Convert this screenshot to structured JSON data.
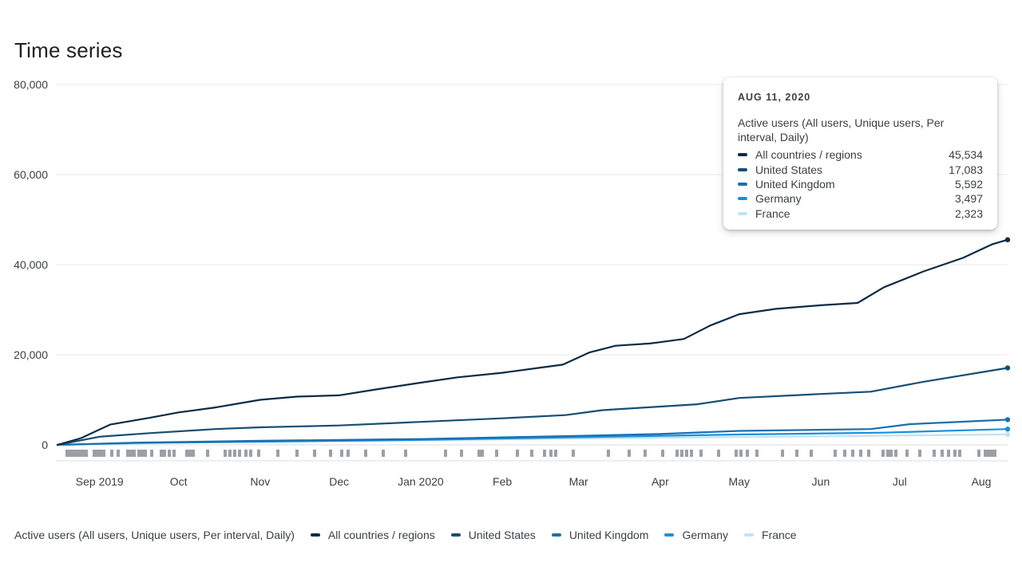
{
  "page": {
    "title": "Time series"
  },
  "chart_data": {
    "type": "line",
    "title": "Time series",
    "metric": "Active users (All users, Unique users, Per interval, Daily)",
    "x_range": [
      "2019-08-16",
      "2020-08-11"
    ],
    "ylim": [
      0,
      80000
    ],
    "y_ticks": [
      "0",
      "20,000",
      "40,000",
      "60,000",
      "80,000"
    ],
    "y_tick_values": [
      0,
      20000,
      40000,
      60000,
      80000
    ],
    "x_ticks": [
      {
        "label": "Sep 2019",
        "date": "2019-09-01"
      },
      {
        "label": "Oct",
        "date": "2019-10-01"
      },
      {
        "label": "Nov",
        "date": "2019-11-01"
      },
      {
        "label": "Dec",
        "date": "2019-12-01"
      },
      {
        "label": "Jan 2020",
        "date": "2020-01-01"
      },
      {
        "label": "Feb",
        "date": "2020-02-01"
      },
      {
        "label": "Mar",
        "date": "2020-03-01"
      },
      {
        "label": "Apr",
        "date": "2020-04-01"
      },
      {
        "label": "May",
        "date": "2020-05-01"
      },
      {
        "label": "Jun",
        "date": "2020-06-01"
      },
      {
        "label": "Jul",
        "date": "2020-07-01"
      },
      {
        "label": "Aug",
        "date": "2020-08-01"
      }
    ],
    "grid": true,
    "legend_position": "bottom",
    "series": [
      {
        "name": "All countries / regions",
        "color": "#0b2b45",
        "points": [
          [
            "2019-08-16",
            0
          ],
          [
            "2019-08-25",
            1500
          ],
          [
            "2019-09-05",
            4500
          ],
          [
            "2019-09-20",
            6000
          ],
          [
            "2019-10-01",
            7200
          ],
          [
            "2019-10-15",
            8300
          ],
          [
            "2019-11-01",
            10000
          ],
          [
            "2019-11-15",
            10700
          ],
          [
            "2019-12-01",
            11000
          ],
          [
            "2019-12-15",
            12300
          ],
          [
            "2020-01-01",
            13800
          ],
          [
            "2020-01-15",
            15000
          ],
          [
            "2020-02-01",
            16000
          ],
          [
            "2020-02-15",
            17100
          ],
          [
            "2020-02-24",
            17800
          ],
          [
            "2020-03-05",
            20500
          ],
          [
            "2020-03-15",
            22000
          ],
          [
            "2020-03-28",
            22500
          ],
          [
            "2020-04-01",
            22800
          ],
          [
            "2020-04-10",
            23500
          ],
          [
            "2020-04-20",
            26500
          ],
          [
            "2020-05-01",
            29000
          ],
          [
            "2020-05-15",
            30200
          ],
          [
            "2020-06-01",
            31000
          ],
          [
            "2020-06-15",
            31500
          ],
          [
            "2020-06-25",
            35000
          ],
          [
            "2020-07-10",
            38500
          ],
          [
            "2020-07-25",
            41500
          ],
          [
            "2020-08-05",
            44500
          ],
          [
            "2020-08-11",
            45534
          ]
        ]
      },
      {
        "name": "United States",
        "color": "#154e73",
        "points": [
          [
            "2019-08-16",
            0
          ],
          [
            "2019-09-01",
            1800
          ],
          [
            "2019-09-20",
            2600
          ],
          [
            "2019-10-15",
            3500
          ],
          [
            "2019-11-01",
            3900
          ],
          [
            "2019-12-01",
            4300
          ],
          [
            "2020-01-01",
            5100
          ],
          [
            "2020-02-01",
            5900
          ],
          [
            "2020-02-25",
            6600
          ],
          [
            "2020-03-10",
            7700
          ],
          [
            "2020-04-01",
            8500
          ],
          [
            "2020-04-15",
            9000
          ],
          [
            "2020-05-01",
            10400
          ],
          [
            "2020-06-01",
            11300
          ],
          [
            "2020-06-20",
            11800
          ],
          [
            "2020-07-10",
            14000
          ],
          [
            "2020-08-11",
            17083
          ]
        ]
      },
      {
        "name": "United Kingdom",
        "color": "#1a6fb0",
        "points": [
          [
            "2019-08-16",
            0
          ],
          [
            "2019-09-15",
            500
          ],
          [
            "2019-11-01",
            900
          ],
          [
            "2020-01-01",
            1300
          ],
          [
            "2020-03-01",
            2000
          ],
          [
            "2020-04-01",
            2400
          ],
          [
            "2020-05-01",
            3100
          ],
          [
            "2020-06-20",
            3500
          ],
          [
            "2020-07-05",
            4600
          ],
          [
            "2020-08-11",
            5592
          ]
        ]
      },
      {
        "name": "Germany",
        "color": "#1b8fdb",
        "points": [
          [
            "2019-08-16",
            0
          ],
          [
            "2019-09-15",
            400
          ],
          [
            "2019-11-01",
            700
          ],
          [
            "2020-01-01",
            1100
          ],
          [
            "2020-03-01",
            1700
          ],
          [
            "2020-05-01",
            2300
          ],
          [
            "2020-06-25",
            2700
          ],
          [
            "2020-08-11",
            3497
          ]
        ]
      },
      {
        "name": "France",
        "color": "#bfe3f6",
        "points": [
          [
            "2019-08-16",
            0
          ],
          [
            "2019-10-01",
            500
          ],
          [
            "2020-01-01",
            1000
          ],
          [
            "2020-03-15",
            1500
          ],
          [
            "2020-06-01",
            1900
          ],
          [
            "2020-08-11",
            2323
          ]
        ]
      }
    ]
  },
  "tooltip": {
    "date": "AUG 11, 2020",
    "metric": "Active users (All users, Unique users, Per interval, Daily)",
    "rows": [
      {
        "name": "All countries / regions",
        "value": "45,534",
        "color": "#0b2b45"
      },
      {
        "name": "United States",
        "value": "17,083",
        "color": "#154e73"
      },
      {
        "name": "United Kingdom",
        "value": "5,592",
        "color": "#1a6fb0"
      },
      {
        "name": "Germany",
        "value": "3,497",
        "color": "#1b8fdb"
      },
      {
        "name": "France",
        "value": "2,323",
        "color": "#bfe3f6"
      }
    ]
  },
  "legend": {
    "metric": "Active users (All users, Unique users, Per interval, Daily)",
    "items": [
      {
        "name": "All countries / regions",
        "color": "#0b2b45"
      },
      {
        "name": "United States",
        "color": "#154e73"
      },
      {
        "name": "United Kingdom",
        "color": "#1a6fb0"
      },
      {
        "name": "Germany",
        "color": "#1b8fdb"
      },
      {
        "name": "France",
        "color": "#bfe3f6"
      }
    ]
  }
}
